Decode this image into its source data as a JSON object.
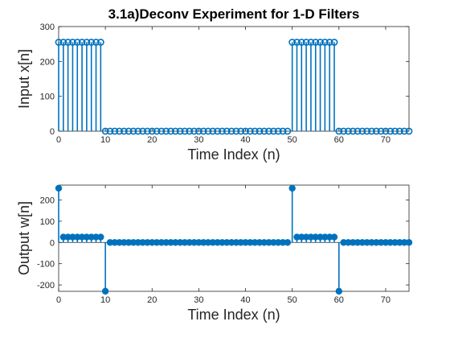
{
  "chart_data": [
    {
      "type": "stem",
      "title": "3.1a)Deconv Experiment for 1-D Filters",
      "xlabel": "Time Index (n)",
      "ylabel": "Input x[n]",
      "xlim": [
        0,
        75
      ],
      "ylim": [
        0,
        300
      ],
      "xticks": [
        0,
        10,
        20,
        30,
        40,
        50,
        60,
        70
      ],
      "yticks": [
        0,
        100,
        200,
        300
      ],
      "marker": "open-circle",
      "grid": false,
      "color": "#0072BD",
      "x": [
        0,
        1,
        2,
        3,
        4,
        5,
        6,
        7,
        8,
        9,
        10,
        11,
        12,
        13,
        14,
        15,
        16,
        17,
        18,
        19,
        20,
        21,
        22,
        23,
        24,
        25,
        26,
        27,
        28,
        29,
        30,
        31,
        32,
        33,
        34,
        35,
        36,
        37,
        38,
        39,
        40,
        41,
        42,
        43,
        44,
        45,
        46,
        47,
        48,
        49,
        50,
        51,
        52,
        53,
        54,
        55,
        56,
        57,
        58,
        59,
        60,
        61,
        62,
        63,
        64,
        65,
        66,
        67,
        68,
        69,
        70,
        71,
        72,
        73,
        74,
        75
      ],
      "y": [
        255,
        255,
        255,
        255,
        255,
        255,
        255,
        255,
        255,
        255,
        0,
        0,
        0,
        0,
        0,
        0,
        0,
        0,
        0,
        0,
        0,
        0,
        0,
        0,
        0,
        0,
        0,
        0,
        0,
        0,
        0,
        0,
        0,
        0,
        0,
        0,
        0,
        0,
        0,
        0,
        0,
        0,
        0,
        0,
        0,
        0,
        0,
        0,
        0,
        0,
        255,
        255,
        255,
        255,
        255,
        255,
        255,
        255,
        255,
        255,
        0,
        0,
        0,
        0,
        0,
        0,
        0,
        0,
        0,
        0,
        0,
        0,
        0,
        0,
        0,
        0
      ]
    },
    {
      "type": "stem",
      "title": "",
      "xlabel": "Time Index (n)",
      "ylabel": "Output w[n]",
      "xlim": [
        0,
        75
      ],
      "ylim": [
        -230,
        270
      ],
      "xticks": [
        0,
        10,
        20,
        30,
        40,
        50,
        60,
        70
      ],
      "yticks": [
        -200,
        -100,
        0,
        100,
        200
      ],
      "marker": "filled-circle",
      "grid": false,
      "color": "#0072BD",
      "x": [
        0,
        1,
        2,
        3,
        4,
        5,
        6,
        7,
        8,
        9,
        10,
        11,
        12,
        13,
        14,
        15,
        16,
        17,
        18,
        19,
        20,
        21,
        22,
        23,
        24,
        25,
        26,
        27,
        28,
        29,
        30,
        31,
        32,
        33,
        34,
        35,
        36,
        37,
        38,
        39,
        40,
        41,
        42,
        43,
        44,
        45,
        46,
        47,
        48,
        49,
        50,
        51,
        52,
        53,
        54,
        55,
        56,
        57,
        58,
        59,
        60,
        61,
        62,
        63,
        64,
        65,
        66,
        67,
        68,
        69,
        70,
        71,
        72,
        73,
        74,
        75
      ],
      "y": [
        255,
        25.5,
        25.5,
        25.5,
        25.5,
        25.5,
        25.5,
        25.5,
        25.5,
        25.5,
        -229.5,
        0,
        0,
        0,
        0,
        0,
        0,
        0,
        0,
        0,
        0,
        0,
        0,
        0,
        0,
        0,
        0,
        0,
        0,
        0,
        0,
        0,
        0,
        0,
        0,
        0,
        0,
        0,
        0,
        0,
        0,
        0,
        0,
        0,
        0,
        0,
        0,
        0,
        0,
        0,
        255,
        25.5,
        25.5,
        25.5,
        25.5,
        25.5,
        25.5,
        25.5,
        25.5,
        25.5,
        -229.5,
        0,
        0,
        0,
        0,
        0,
        0,
        0,
        0,
        0,
        0,
        0,
        0,
        0,
        0,
        0
      ]
    }
  ]
}
